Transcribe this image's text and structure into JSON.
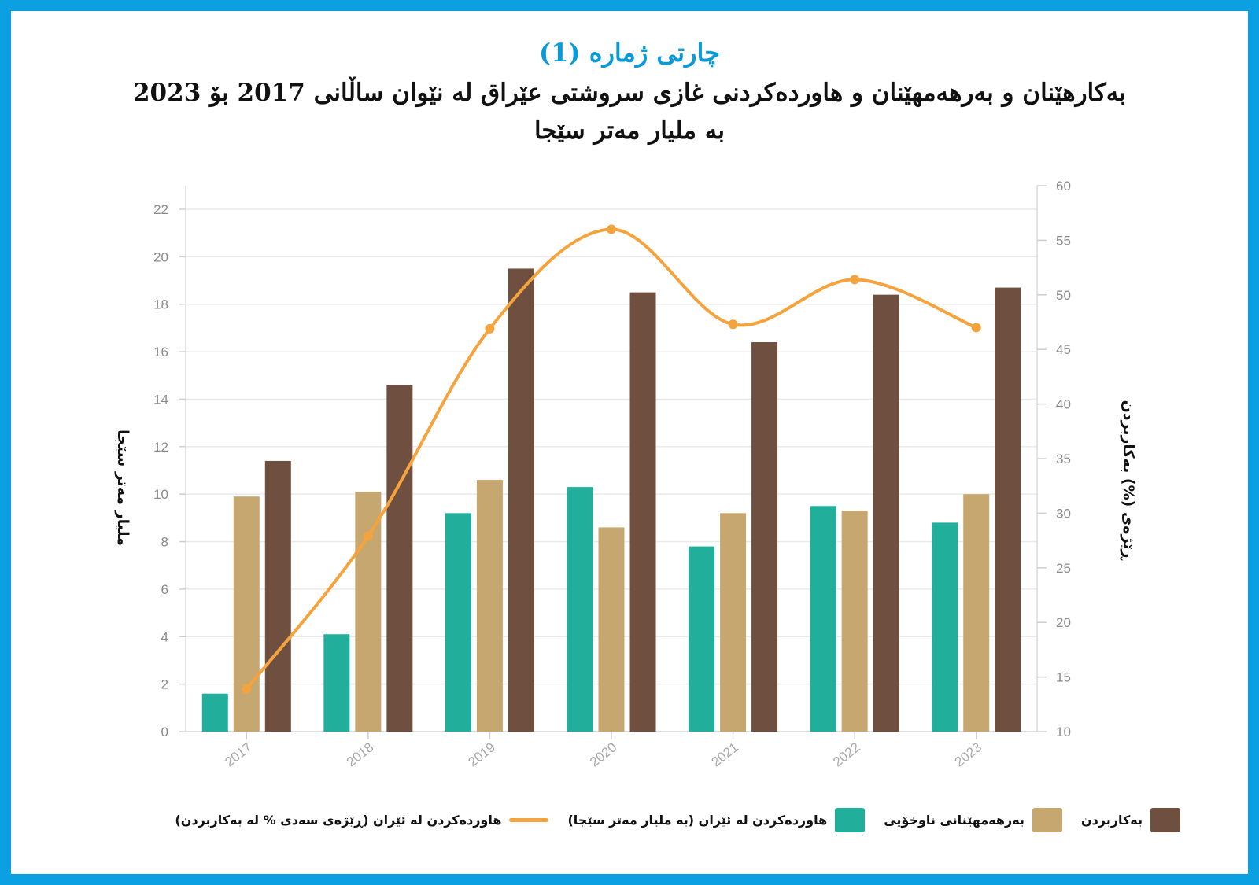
{
  "heading": {
    "chart_number": "چارتی ژماره (1)",
    "title_line1": "بەکارهێنان و بەرهەمهێنان و هاوردەکردنی غازی سروشتی عێراق لە نێوان ساڵانی  2017 بۆ 2023",
    "title_line2": "بە ملیار مەتر سێجا"
  },
  "colors": {
    "frame": "#0aa0e2",
    "heading_accent": "#0a9ad8",
    "import_bar": "#21ae9b",
    "production_bar": "#c7a770",
    "consumption_bar": "#6f4f40",
    "import_share_line": "#f5a33c"
  },
  "chart_data": {
    "type": "bar",
    "categories": [
      "2017",
      "2018",
      "2019",
      "2020",
      "2021",
      "2022",
      "2023"
    ],
    "ylabel": "ملیار مەتر سێجا",
    "y2label": "ڕێژەی (%) بەکاربردن",
    "ylim": [
      0,
      22
    ],
    "yticks": [
      0,
      2,
      4,
      6,
      8,
      10,
      12,
      14,
      16,
      18,
      20,
      22
    ],
    "y2lim": [
      10,
      60
    ],
    "y2ticks": [
      10,
      15,
      20,
      25,
      30,
      35,
      40,
      45,
      50,
      55,
      60
    ],
    "grid": true,
    "legend_position": "bottom",
    "series": [
      {
        "name": "هاوردەکردن لە ئێران (بە ملیار مەتر سێجا)",
        "type": "bar",
        "axis": "left",
        "values": [
          1.6,
          4.1,
          9.2,
          10.3,
          7.8,
          9.5,
          8.8
        ]
      },
      {
        "name": "بەرهەمهێنانی ناوخۆیی",
        "type": "bar",
        "axis": "left",
        "values": [
          9.9,
          10.1,
          10.6,
          8.6,
          9.2,
          9.3,
          10.0
        ]
      },
      {
        "name": "بەکاربردن",
        "type": "bar",
        "axis": "left",
        "values": [
          11.4,
          14.6,
          19.5,
          18.5,
          16.4,
          18.4,
          18.7
        ]
      },
      {
        "name": "هاوردەکردن لە ئێران (ڕێژەی سەدی % لە بەکاربردن)",
        "type": "line",
        "axis": "right",
        "values": [
          13.9,
          27.9,
          46.9,
          56.0,
          47.3,
          51.4,
          47.0
        ]
      }
    ]
  },
  "legend": [
    {
      "label": "بەکاربردن",
      "swatch": "consumption_bar",
      "kind": "box"
    },
    {
      "label": "بەرهەمهێنانی ناوخۆیی",
      "swatch": "production_bar",
      "kind": "box"
    },
    {
      "label": "هاوردەکردن لە ئێران (بە ملیار مەتر سێجا)",
      "swatch": "import_bar",
      "kind": "box"
    },
    {
      "label": "هاوردەکردن لە ئێران (ڕێژەی سەدی % لە بەکاربردن)",
      "swatch": "import_share_line",
      "kind": "line"
    }
  ]
}
